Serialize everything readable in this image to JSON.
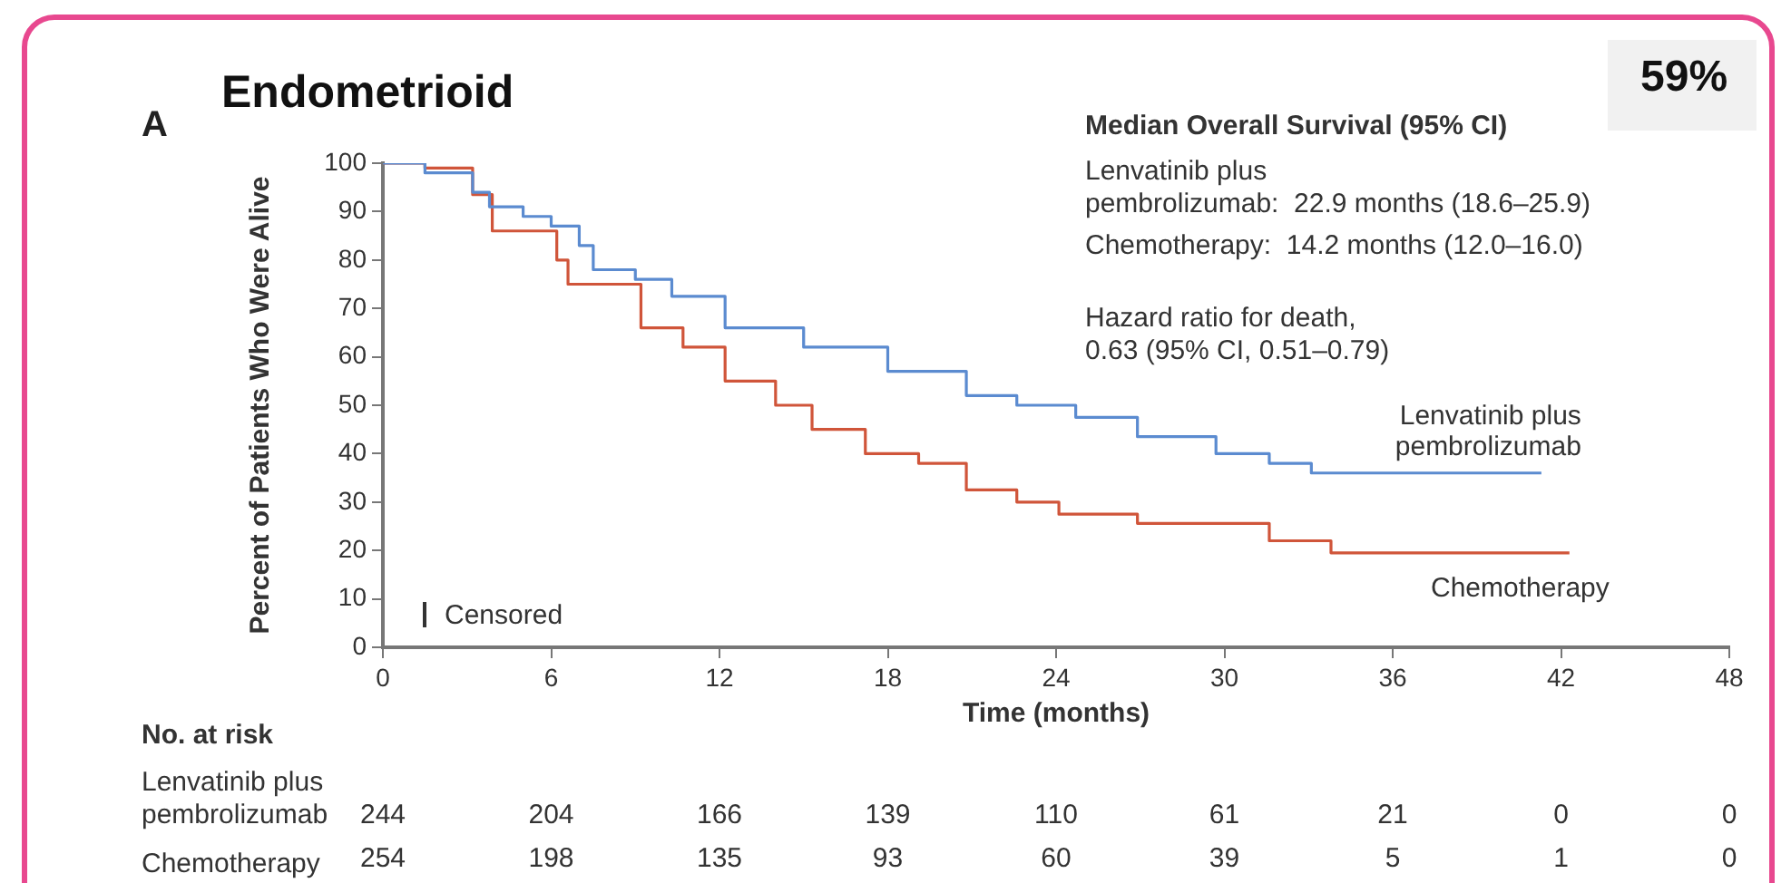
{
  "chart_data": {
    "type": "step",
    "title": "Endometrioid",
    "xlabel": "Time (months)",
    "ylabel": "Percent of Patients Who Were Alive",
    "xlim": [
      0,
      48
    ],
    "xticks": [
      0,
      6,
      12,
      18,
      24,
      30,
      36,
      42,
      48
    ],
    "ylim": [
      0,
      100
    ],
    "yticks": [
      0,
      10,
      20,
      30,
      40,
      50,
      60,
      70,
      80,
      90,
      100
    ],
    "grid": false,
    "legend": false,
    "marker": "none",
    "line_style": "solid",
    "series": [
      {
        "name": "Lenvatinib plus pembrolizumab",
        "color": "#5b8bd0",
        "x": [
          0,
          1.5,
          3.2,
          3.8,
          5,
          6,
          7,
          7.5,
          9,
          10.3,
          12.2,
          15,
          18,
          20.8,
          22.6,
          24.7,
          26.9,
          29.7,
          31.6,
          33.1,
          41.3
        ],
        "values": [
          100,
          98,
          94,
          91,
          89,
          87,
          83,
          78,
          76,
          72.5,
          66,
          62,
          57,
          52,
          50,
          47.5,
          43.5,
          40,
          38,
          36,
          36
        ]
      },
      {
        "name": "Chemotherapy",
        "color": "#d0553a",
        "x": [
          0,
          1.5,
          3.2,
          3.9,
          6.2,
          6.6,
          9.2,
          10.7,
          12.2,
          14,
          15.3,
          17.2,
          19.1,
          20.8,
          22.6,
          24.1,
          26.9,
          31.6,
          33.8,
          42.3
        ],
        "values": [
          100,
          99,
          93.5,
          86,
          80,
          75,
          66,
          62,
          55,
          50,
          45,
          40,
          38,
          32.5,
          30,
          27.5,
          25.6,
          22,
          19.5,
          19.5
        ]
      }
    ],
    "annotations": [
      "A",
      "59%",
      "Median Overall Survival (95% CI)",
      "Lenvatinib plus\npembrolizumab:  22.9 months (18.6–25.9)",
      "Chemotherapy:  14.2 months (12.0–16.0)",
      "Hazard ratio for death,\n0.63 (95% CI, 0.51–0.79)",
      "Censored",
      "No. at risk",
      "Lenvatinib plus\npembrolizumab",
      "244 204 166 139 110 61 21 0 0",
      "Chemotherapy",
      "254 198 135 93 60 39 5 1 0"
    ]
  }
}
